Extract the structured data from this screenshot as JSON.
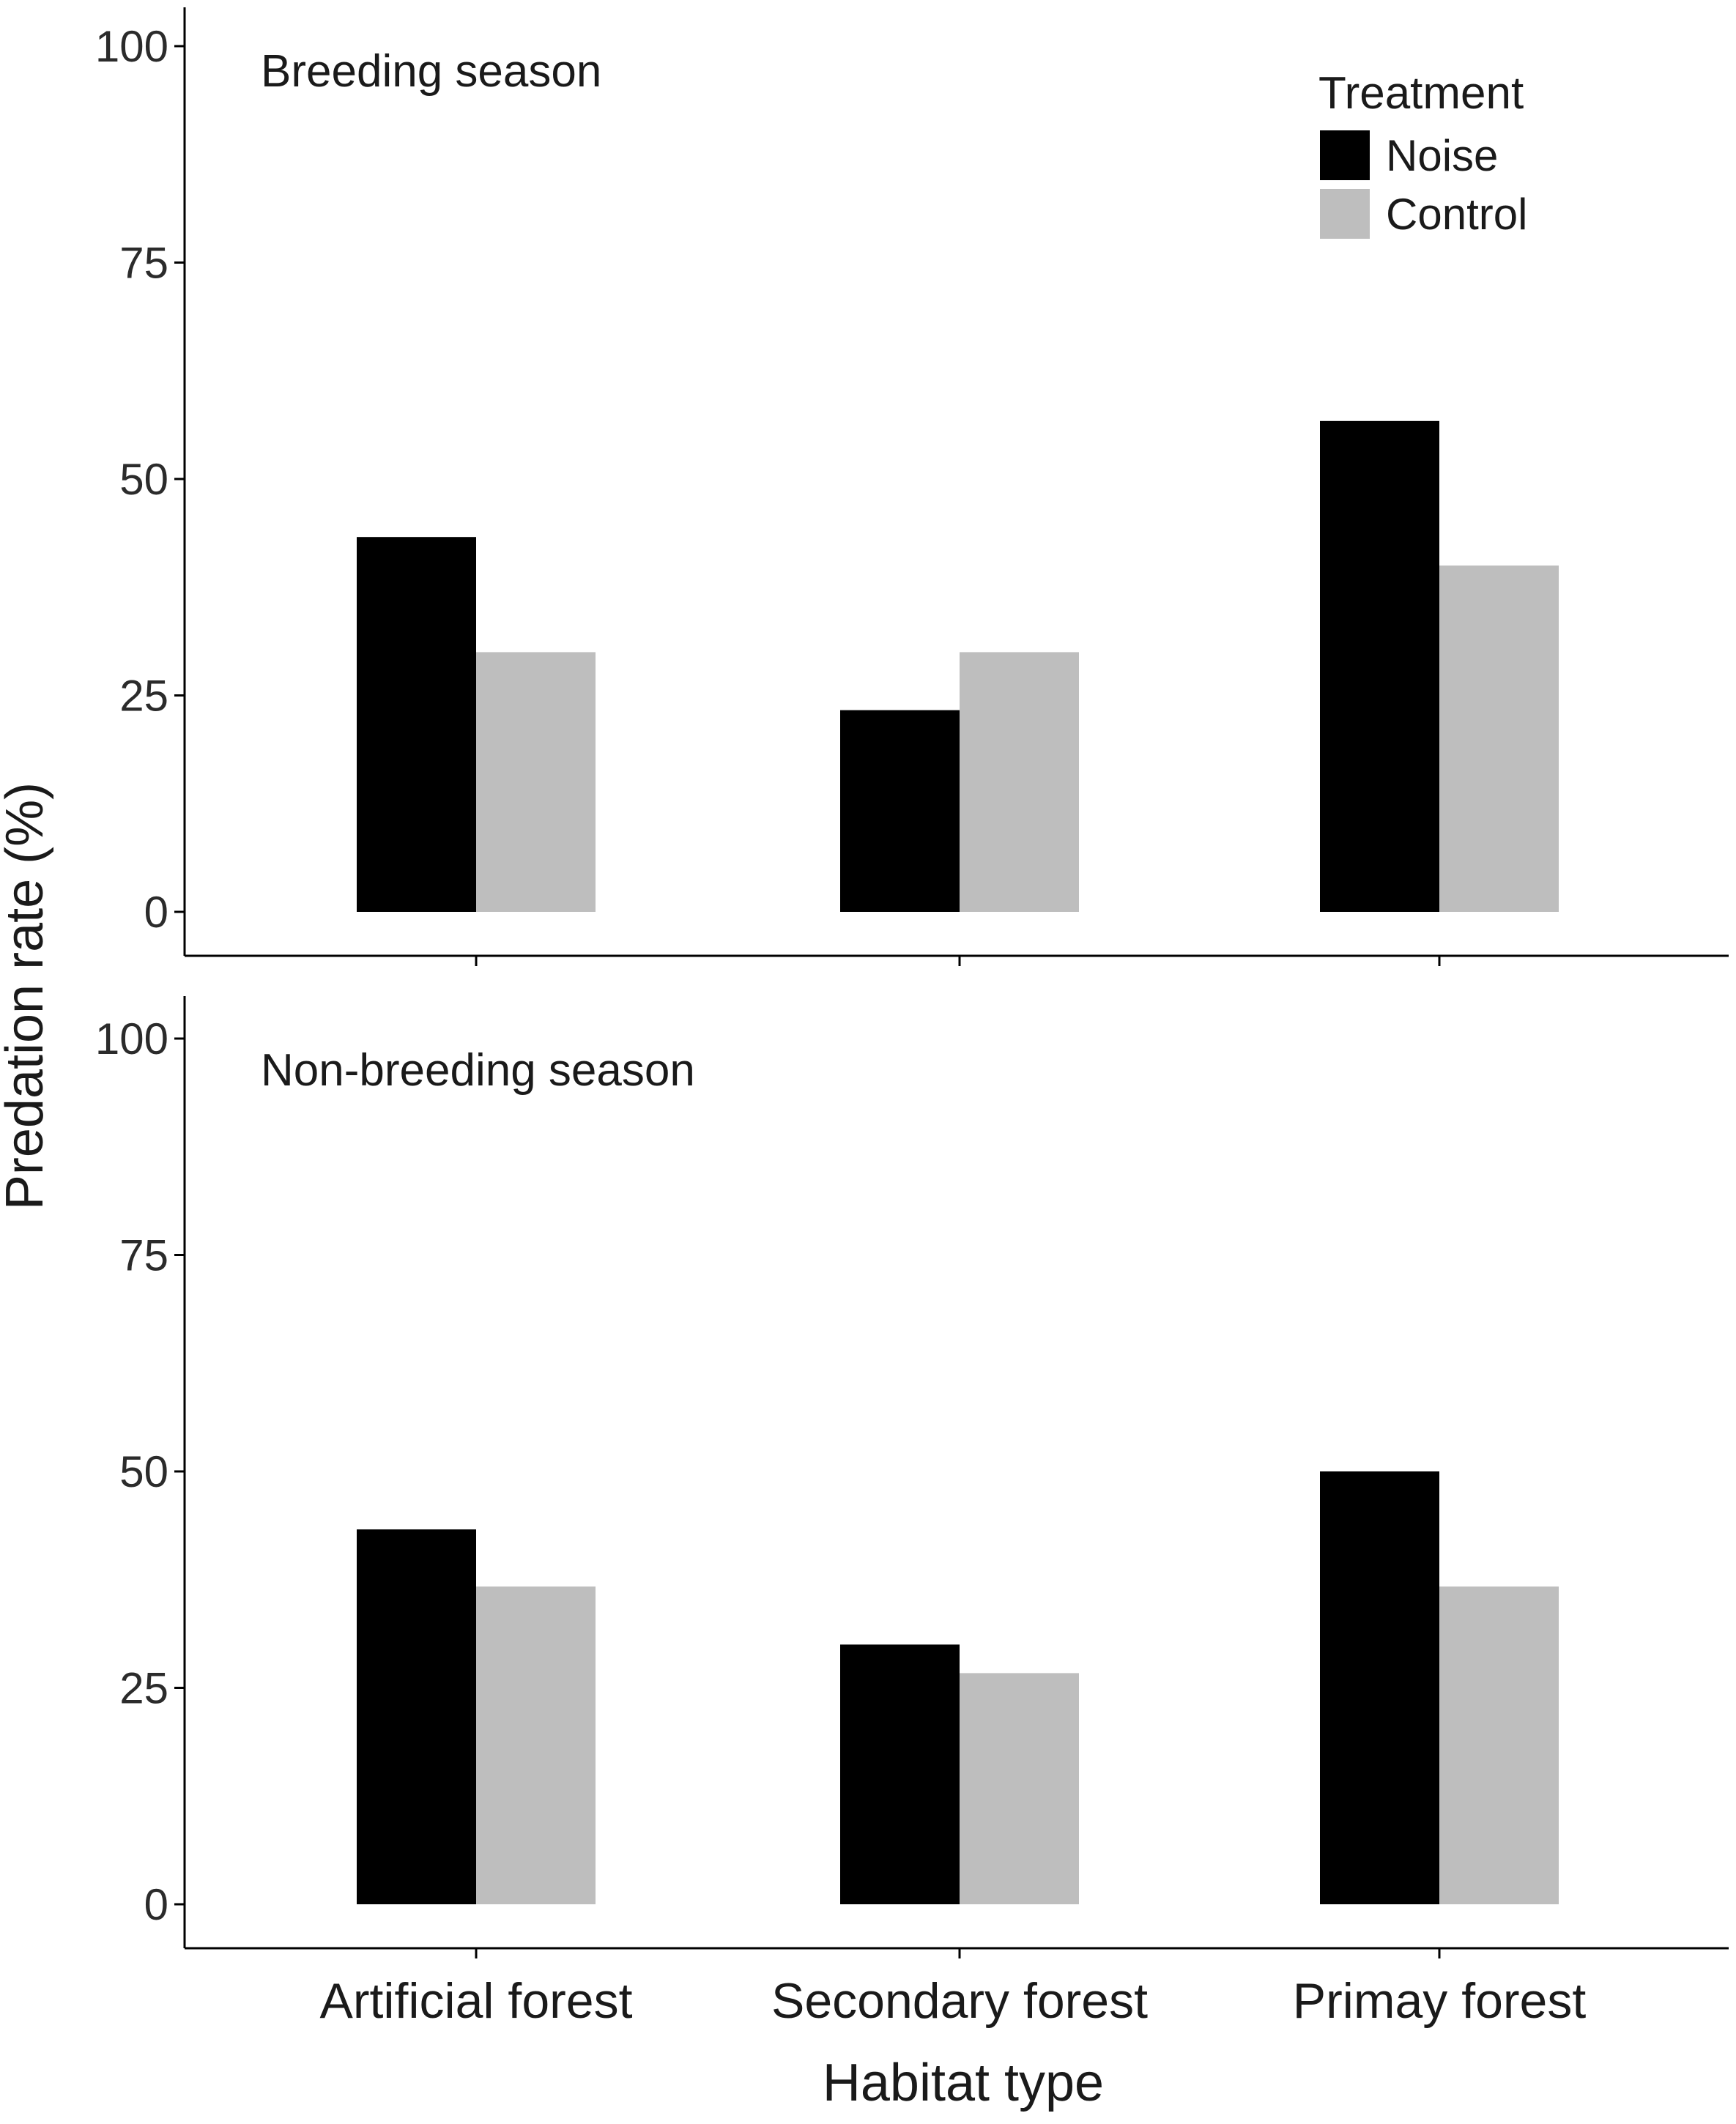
{
  "chart_data": {
    "type": "bar",
    "xlabel": "Habitat type",
    "ylabel": "Predation rate (%)",
    "categories": [
      "Artificial forest",
      "Secondary forest",
      "Primay forest"
    ],
    "ylim": [
      0,
      100
    ],
    "yticks": [
      0,
      25,
      50,
      75,
      100
    ],
    "grid": false,
    "legend": {
      "title": "Treatment",
      "placement": "top-right",
      "entries": [
        {
          "name": "Noise",
          "color": "#000000"
        },
        {
          "name": "Control",
          "color": "#bebebe"
        }
      ]
    },
    "panels": [
      {
        "label": "Breeding season",
        "series": [
          {
            "name": "Noise",
            "values": [
              43.3,
              23.3,
              56.7
            ]
          },
          {
            "name": "Control",
            "values": [
              30.0,
              30.0,
              40.0
            ]
          }
        ]
      },
      {
        "label": "Non-breeding season",
        "series": [
          {
            "name": "Noise",
            "values": [
              43.3,
              30.0,
              50.0
            ]
          },
          {
            "name": "Control",
            "values": [
              36.7,
              26.7,
              36.7
            ]
          }
        ]
      }
    ]
  }
}
